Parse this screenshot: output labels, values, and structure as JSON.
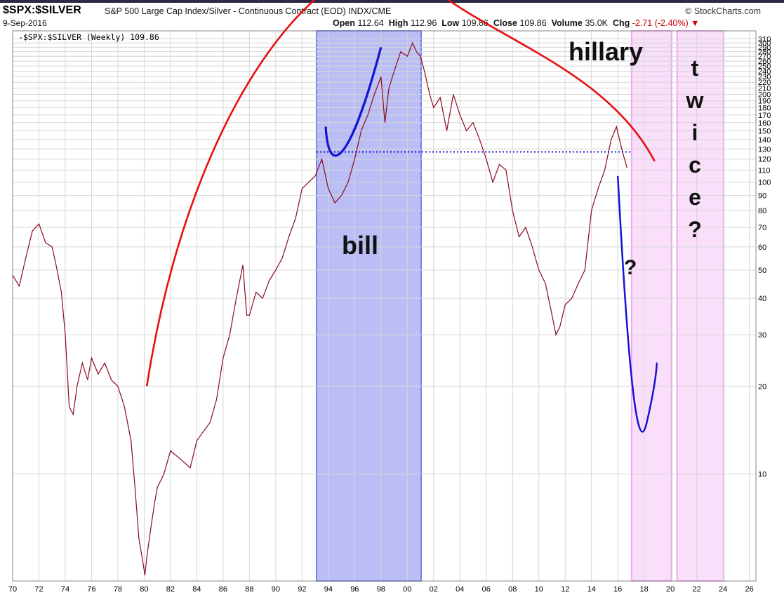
{
  "header": {
    "symbol": "$SPX:$SILVER",
    "description": "S&P 500 Large Cap Index/Silver - Continuous Contract (EOD) INDX/CME",
    "brand": "© StockCharts.com",
    "date": "9-Sep-2016",
    "open_label": "Open",
    "open": "112.64",
    "high_label": "High",
    "high": "112.96",
    "low_label": "Low",
    "low": "109.86",
    "close_label": "Close",
    "close": "109.86",
    "volume_label": "Volume",
    "volume": "35.0K",
    "chg_label": "Chg",
    "chg": "-2.71 (-2.40%)"
  },
  "legend": {
    "text": "-$SPX:$SILVER (Weekly) 109.86"
  },
  "colors": {
    "price": "#8b0a1e",
    "arc": "#e81010",
    "blue_ann": "#1414d2",
    "bill_band": "#aeb3f2",
    "hillary_band": "#fadcfa",
    "grid": "#d6d6d6"
  },
  "annotations": {
    "bill": "bill",
    "hillary": "hillary",
    "question": "?",
    "twice": [
      "t",
      "w",
      "i",
      "c",
      "e",
      "?"
    ]
  },
  "chart_data": {
    "type": "line",
    "title": "$SPX:$SILVER S&P 500 Large Cap Index/Silver - Continuous Contract (EOD) INDX/CME",
    "xlabel": "",
    "ylabel": "",
    "y_scale": "log",
    "xlim": [
      1970,
      2026.5
    ],
    "ylim": [
      4.3,
      330
    ],
    "x_tick_labels": [
      "70",
      "72",
      "74",
      "76",
      "78",
      "80",
      "82",
      "84",
      "86",
      "88",
      "90",
      "92",
      "94",
      "96",
      "98",
      "00",
      "02",
      "04",
      "06",
      "08",
      "10",
      "12",
      "14",
      "16",
      "18",
      "20",
      "22",
      "24",
      "26"
    ],
    "y_ticks": [
      10,
      20,
      30,
      40,
      50,
      60,
      70,
      80,
      90,
      100,
      110,
      120,
      130,
      140,
      150,
      160,
      170,
      180,
      190,
      200,
      210,
      220,
      230,
      240,
      250,
      260,
      270,
      280,
      290,
      300,
      310
    ],
    "series": [
      {
        "name": "$SPX:$SILVER (Weekly)",
        "x": [
          1970.0,
          1970.5,
          1971.0,
          1971.5,
          1972.0,
          1972.5,
          1973.0,
          1973.3,
          1973.7,
          1974.0,
          1974.3,
          1974.6,
          1974.9,
          1975.3,
          1975.7,
          1976.0,
          1976.5,
          1977.0,
          1977.5,
          1978.0,
          1978.5,
          1979.0,
          1979.3,
          1979.6,
          1979.9,
          1980.05,
          1980.2,
          1980.5,
          1980.8,
          1981.0,
          1981.5,
          1982.0,
          1982.5,
          1983.0,
          1983.5,
          1984.0,
          1984.5,
          1985.0,
          1985.5,
          1986.0,
          1986.5,
          1987.0,
          1987.5,
          1987.8,
          1988.0,
          1988.5,
          1989.0,
          1989.5,
          1990.0,
          1990.5,
          1991.0,
          1991.5,
          1992.0,
          1992.5,
          1993.0,
          1993.5,
          1994.0,
          1994.5,
          1995.0,
          1995.5,
          1996.0,
          1996.5,
          1997.0,
          1997.5,
          1998.0,
          1998.3,
          1998.6,
          1999.0,
          1999.5,
          2000.0,
          2000.4,
          2000.7,
          2001.0,
          2001.3,
          2001.7,
          2002.0,
          2002.5,
          2003.0,
          2003.5,
          2004.0,
          2004.5,
          2005.0,
          2005.5,
          2006.0,
          2006.5,
          2007.0,
          2007.5,
          2008.0,
          2008.5,
          2009.0,
          2009.5,
          2010.0,
          2010.5,
          2011.0,
          2011.3,
          2011.6,
          2012.0,
          2012.5,
          2013.0,
          2013.5,
          2014.0,
          2014.5,
          2015.0,
          2015.5,
          2015.9,
          2016.3,
          2016.7
        ],
        "y": [
          48,
          44,
          55,
          68,
          72,
          62,
          60,
          52,
          42,
          30,
          17,
          16,
          20,
          24,
          21,
          25,
          22,
          24,
          21,
          20,
          17,
          13,
          9,
          6,
          5,
          4.5,
          5.2,
          6.5,
          8,
          9,
          10,
          12,
          11.5,
          11,
          10.5,
          13,
          14,
          15,
          18,
          25,
          30,
          40,
          52,
          35,
          35,
          42,
          40,
          46,
          50,
          55,
          65,
          75,
          95,
          100,
          105,
          120,
          95,
          85,
          90,
          100,
          120,
          150,
          170,
          200,
          230,
          160,
          210,
          240,
          280,
          270,
          300,
          280,
          270,
          240,
          200,
          180,
          195,
          150,
          200,
          170,
          150,
          160,
          140,
          120,
          100,
          115,
          110,
          80,
          65,
          70,
          60,
          50,
          45,
          35,
          30,
          32,
          38,
          40,
          45,
          50,
          80,
          95,
          110,
          140,
          155,
          130,
          112
        ]
      }
    ]
  }
}
